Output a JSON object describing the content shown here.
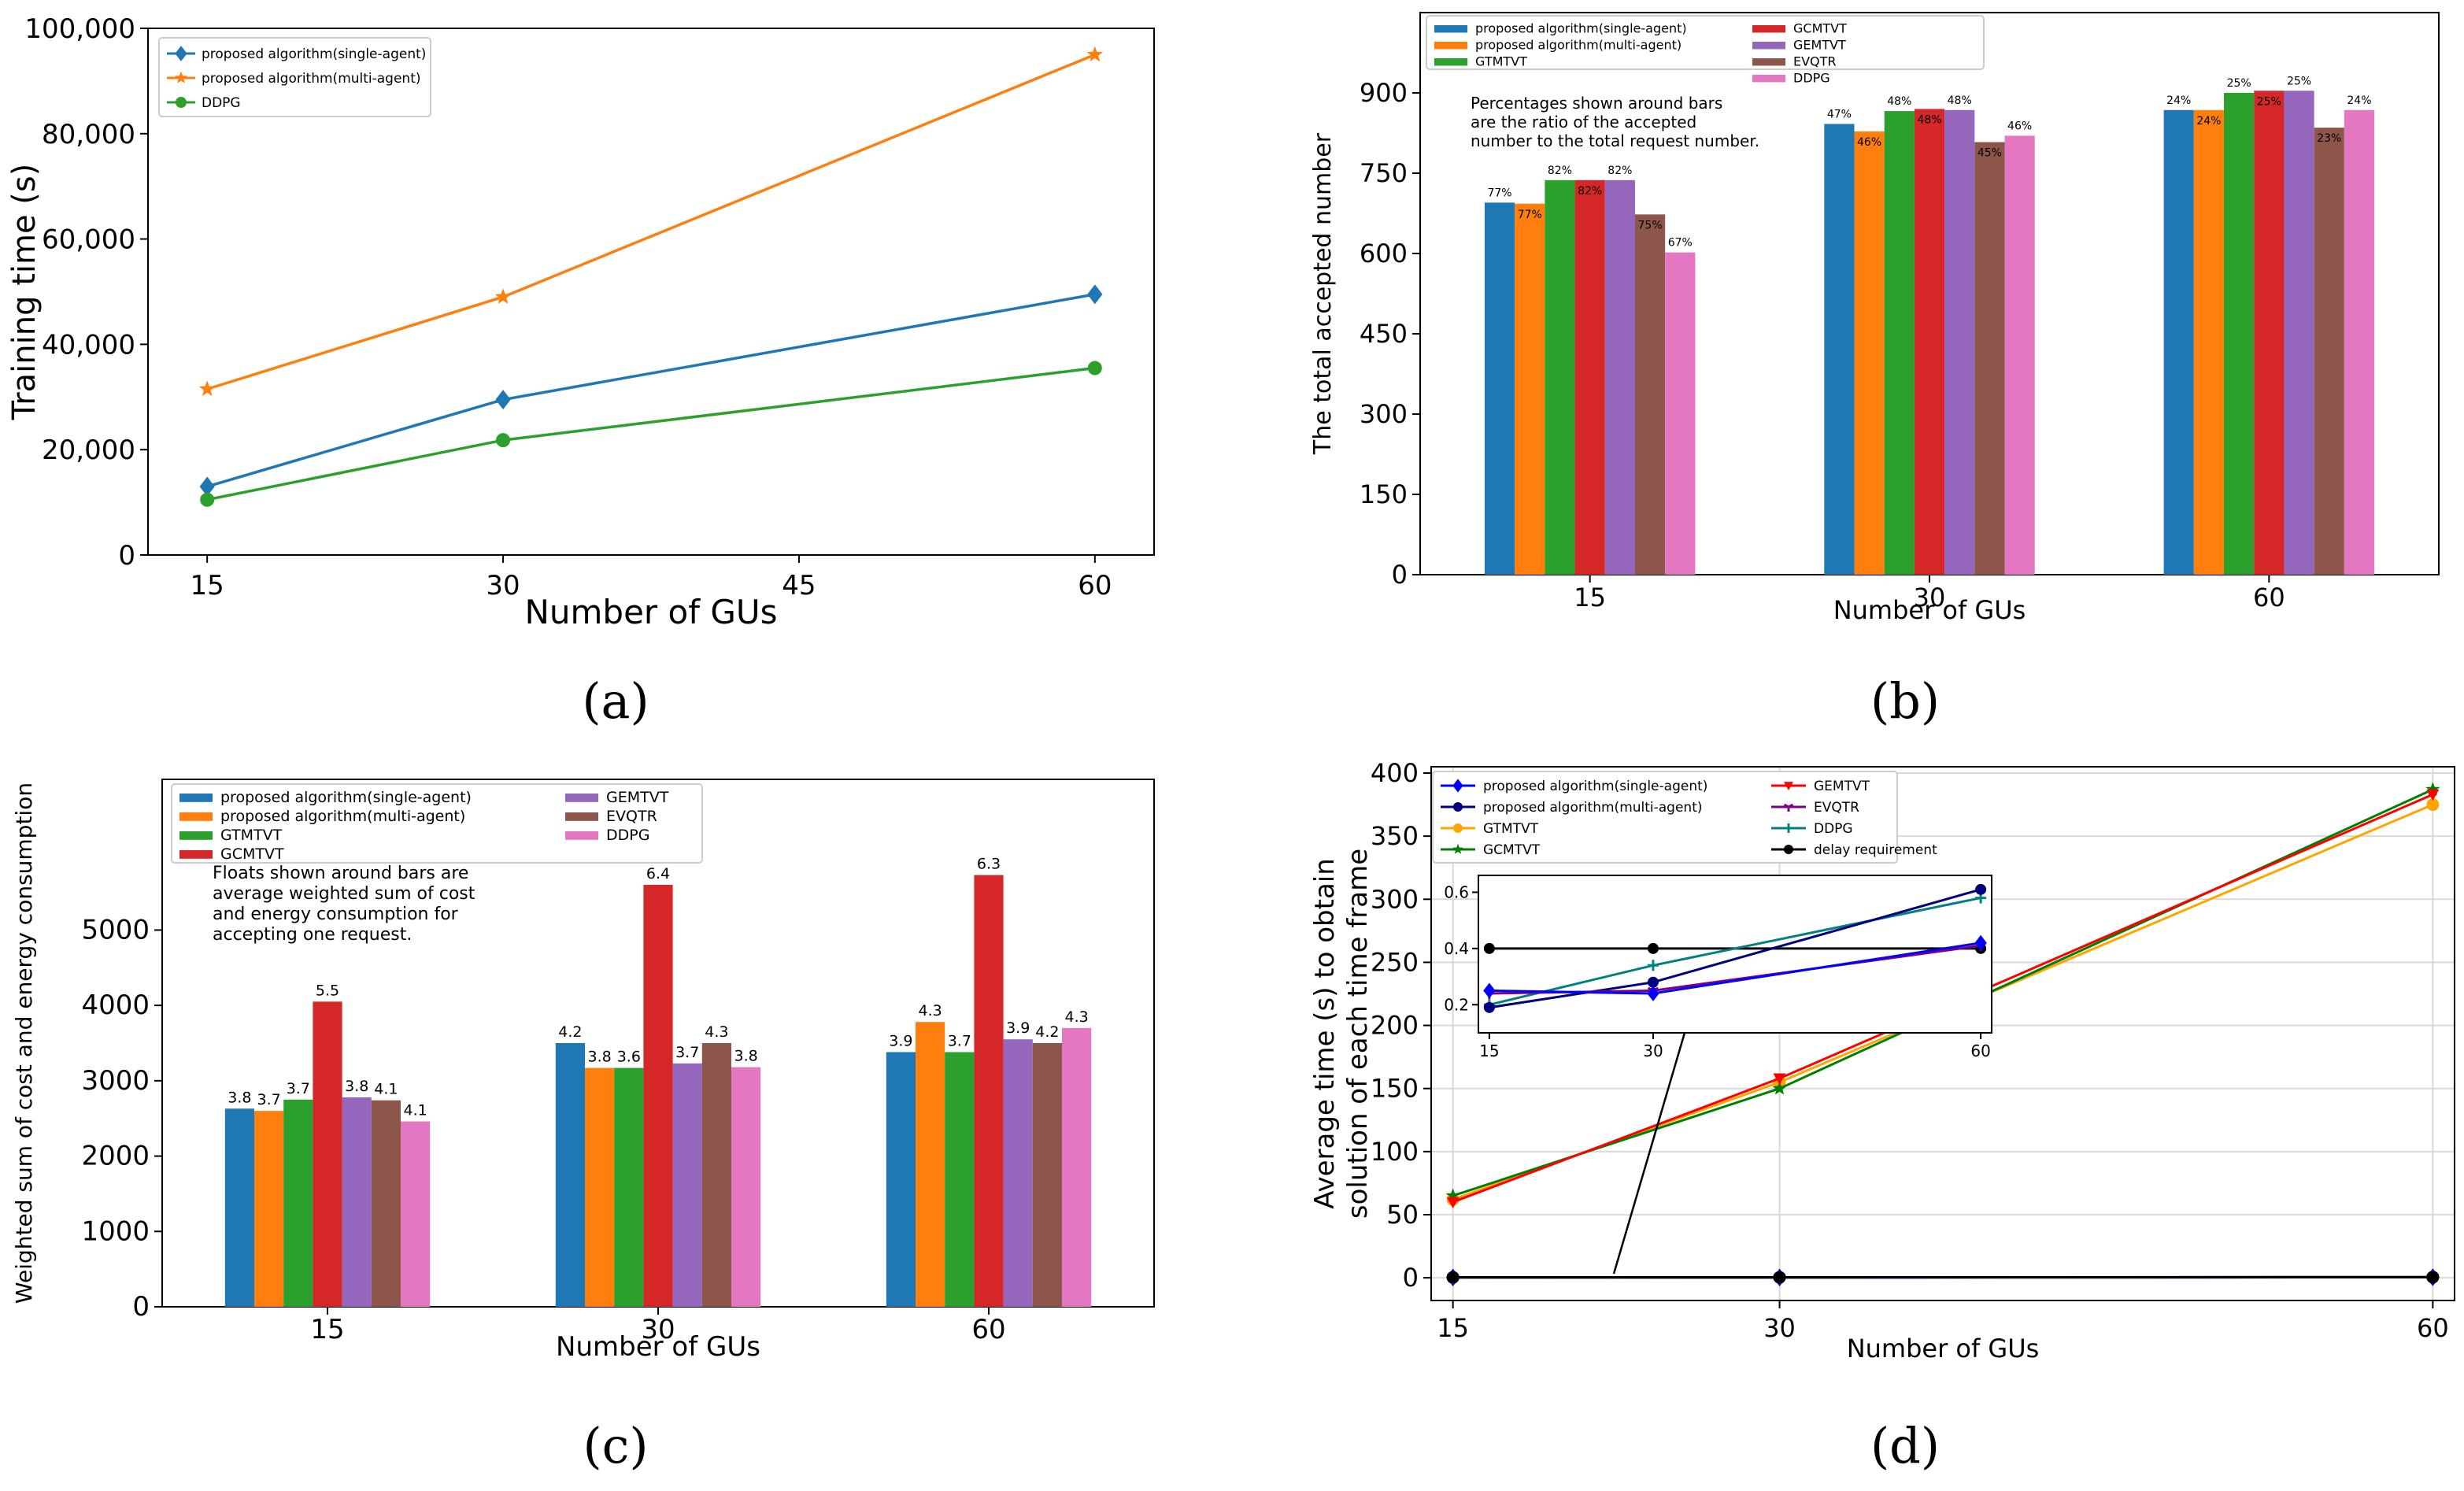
{
  "colors": {
    "blue": "#1f77b4",
    "orange": "#ff7f0e",
    "green": "#2ca02c",
    "red": "#d62728",
    "purple": "#9467bd",
    "brown": "#8c564b",
    "pink": "#e377c2",
    "olive": "#bcbd22",
    "cyan": "#17becf"
  },
  "panel_letters": [
    "(a)",
    "(b)",
    "(c)",
    "(d)"
  ],
  "chart_data": [
    {
      "type": "line",
      "ylabel": "Training time (s)",
      "xlabel": "Number of GUs",
      "xlim": [
        12,
        63
      ],
      "ylim": [
        0,
        100000
      ],
      "xticks": [
        "15",
        "30",
        "45",
        "60"
      ],
      "yticks": [
        "0",
        "20,000",
        "40,000",
        "60,000",
        "80,000",
        "100,000"
      ],
      "legend_position": "top-left",
      "series": [
        {
          "name": "proposed algorithm(single-agent)",
          "color": "#1f77b4",
          "marker": "diamond",
          "x": [
            15,
            30,
            60
          ],
          "y": [
            13000,
            29500,
            49500
          ]
        },
        {
          "name": "proposed algorithm(multi-agent)",
          "color": "#ff7f0e",
          "marker": "star",
          "x": [
            15,
            30,
            60
          ],
          "y": [
            31500,
            49000,
            95000
          ]
        },
        {
          "name": "DDPG",
          "color": "#2ca02c",
          "marker": "circle",
          "x": [
            15,
            30,
            60
          ],
          "y": [
            10500,
            21800,
            35500
          ]
        }
      ]
    },
    {
      "type": "bar",
      "ylabel": "The total accepted number",
      "xlabel": "Number of GUs",
      "ylim": [
        0,
        1050
      ],
      "yticks": [
        "0",
        "150",
        "300",
        "450",
        "600",
        "750",
        "900"
      ],
      "categories": [
        "15",
        "30",
        "60"
      ],
      "legend_position": "top-left",
      "annotation": [
        "Percentages shown around bars",
        "are the ratio of the accepted",
        "number to the total request number."
      ],
      "series": [
        {
          "name": "proposed algorithm(single-agent)",
          "color": "#1f77b4",
          "values": [
            695,
            842,
            868
          ],
          "labels": [
            "77%",
            "47%",
            "24%"
          ]
        },
        {
          "name": "proposed algorithm(multi-agent)",
          "color": "#ff7f0e",
          "values": [
            693,
            828,
            868
          ],
          "labels": [
            "77%",
            "46%",
            "24%"
          ]
        },
        {
          "name": "GTMTVT",
          "color": "#2ca02c",
          "values": [
            737,
            866,
            900
          ],
          "labels": [
            "82%",
            "48%",
            "25%"
          ]
        },
        {
          "name": "GCMTVT",
          "color": "#d62728",
          "values": [
            737,
            870,
            904
          ],
          "labels": [
            "82%",
            "48%",
            "25%"
          ]
        },
        {
          "name": "GEMTVT",
          "color": "#9467bd",
          "values": [
            737,
            868,
            904
          ],
          "labels": [
            "82%",
            "48%",
            "25%"
          ]
        },
        {
          "name": "EVQTR",
          "color": "#8c564b",
          "values": [
            673,
            808,
            835
          ],
          "labels": [
            "75%",
            "45%",
            "23%"
          ]
        },
        {
          "name": "DDPG",
          "color": "#e377c2",
          "values": [
            602,
            820,
            868
          ],
          "labels": [
            "67%",
            "46%",
            "24%"
          ]
        }
      ]
    },
    {
      "type": "bar",
      "ylabel": "Weighted sum of cost and energy consumption",
      "xlabel": "Number of GUs",
      "ylim": [
        0,
        7000
      ],
      "yticks": [
        "0",
        "1000",
        "2000",
        "3000",
        "4000",
        "5000"
      ],
      "categories": [
        "15",
        "30",
        "60"
      ],
      "legend_position": "top-left",
      "annotation": [
        "Floats shown around bars are",
        "average weighted sum of cost",
        "and energy consumption for",
        "accepting one request."
      ],
      "series": [
        {
          "name": "proposed algorithm(single-agent)",
          "color": "#1f77b4",
          "values": [
            2630,
            3500,
            3380
          ],
          "labels": [
            "3.8",
            "4.2",
            "3.9"
          ]
        },
        {
          "name": "proposed algorithm(multi-agent)",
          "color": "#ff7f0e",
          "values": [
            2600,
            3170,
            3780
          ],
          "labels": [
            "3.7",
            "3.8",
            "4.3"
          ]
        },
        {
          "name": "GTMTVT",
          "color": "#2ca02c",
          "values": [
            2750,
            3170,
            3380
          ],
          "labels": [
            "3.7",
            "3.6",
            "3.7"
          ]
        },
        {
          "name": "GCMTVT",
          "color": "#d62728",
          "values": [
            4050,
            5600,
            5730
          ],
          "labels": [
            "5.5",
            "6.4",
            "6.3"
          ]
        },
        {
          "name": "GEMTVT",
          "color": "#9467bd",
          "values": [
            2780,
            3230,
            3550
          ],
          "labels": [
            "3.8",
            "3.7",
            "3.9"
          ]
        },
        {
          "name": "EVQTR",
          "color": "#8c564b",
          "values": [
            2740,
            3500,
            3500
          ],
          "labels": [
            "4.1",
            "4.3",
            "4.2"
          ]
        },
        {
          "name": "DDPG",
          "color": "#e377c2",
          "values": [
            2460,
            3180,
            3700
          ],
          "labels": [
            "4.1",
            "3.8",
            "4.3"
          ]
        }
      ]
    },
    {
      "type": "line",
      "ylabel": "Average time (s) to obtain solution of each time frame",
      "xlabel": "Number of GUs",
      "xlim": [
        14,
        61
      ],
      "ylim": [
        -18,
        405
      ],
      "xticks": [
        "15",
        "30",
        "60"
      ],
      "yticks": [
        "0",
        "50",
        "100",
        "150",
        "200",
        "250",
        "300",
        "350",
        "400"
      ],
      "grid": true,
      "legend_position": "top-left",
      "series": [
        {
          "name": "proposed algorithm(single-agent)",
          "color": "#0000ff",
          "marker": "diamond",
          "x": [
            15,
            30,
            60
          ],
          "y": [
            0.25,
            0.24,
            0.42
          ]
        },
        {
          "name": "proposed algorithm(multi-agent)",
          "color": "#000080",
          "marker": "circle",
          "x": [
            15,
            30,
            60
          ],
          "y": [
            0.19,
            0.28,
            0.61
          ]
        },
        {
          "name": "GTMTVT",
          "color": "#ffa500",
          "marker": "circle",
          "x": [
            15,
            30,
            60
          ],
          "y": [
            62,
            155,
            375
          ]
        },
        {
          "name": "GCMTVT",
          "color": "#008000",
          "marker": "star",
          "x": [
            15,
            30,
            60
          ],
          "y": [
            65,
            150,
            387
          ]
        },
        {
          "name": "GEMTVT",
          "color": "#ff0000",
          "marker": "triangle-down",
          "x": [
            15,
            30,
            60
          ],
          "y": [
            60,
            158,
            383
          ]
        },
        {
          "name": "EVQTR",
          "color": "#800080",
          "marker": "tri-down",
          "x": [
            15,
            30,
            60
          ],
          "y": [
            0.24,
            0.25,
            0.41
          ]
        },
        {
          "name": "DDPG",
          "color": "#008080",
          "marker": "plus",
          "x": [
            15,
            30,
            60
          ],
          "y": [
            0.2,
            0.34,
            0.58
          ]
        },
        {
          "name": "delay requirement",
          "color": "#000000",
          "marker": "circle",
          "x": [
            15,
            30,
            60
          ],
          "y": [
            0.4,
            0.4,
            0.4
          ]
        }
      ],
      "inset": {
        "xlim": [
          14,
          61
        ],
        "ylim": [
          0.1,
          0.66
        ],
        "xticks": [
          "15",
          "30",
          "60"
        ],
        "yticks": [
          "0.2",
          "0.4",
          "0.6"
        ],
        "series_order": [
          "delay requirement",
          "DDPG",
          "proposed algorithm(multi-agent)",
          "EVQTR",
          "proposed algorithm(single-agent)"
        ]
      }
    }
  ]
}
